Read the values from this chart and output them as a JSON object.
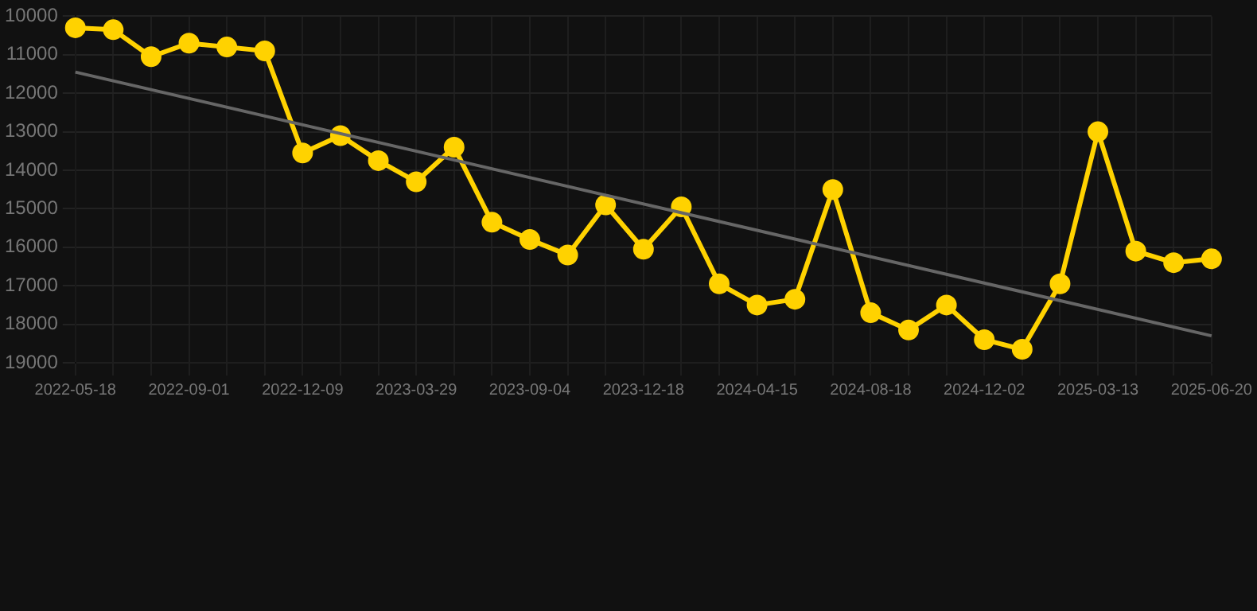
{
  "chart_data": {
    "type": "line",
    "categories": [
      "2022-05-18",
      null,
      null,
      "2022-09-01",
      null,
      null,
      "2022-12-09",
      null,
      null,
      "2023-03-29",
      null,
      null,
      "2023-09-04",
      null,
      null,
      "2023-12-18",
      null,
      null,
      "2024-04-15",
      null,
      null,
      "2024-08-18",
      null,
      null,
      "2024-12-02",
      null,
      null,
      "2025-03-13",
      null,
      null,
      "2025-06-20"
    ],
    "series": [
      {
        "color": "#ffd200",
        "marker": "circle",
        "values": [
          10300,
          10350,
          11050,
          10700,
          10800,
          10900,
          13550,
          13100,
          13750,
          14300,
          13400,
          15350,
          15800,
          16200,
          14900,
          16050,
          14950,
          16950,
          17500,
          17350,
          14500,
          17700,
          18150,
          17500,
          18400,
          18650,
          16950,
          13000,
          16100,
          16400,
          16300
        ]
      },
      {
        "type": "line",
        "color": "#666666",
        "marker": "none",
        "values": [
          11450,
          null,
          null,
          null,
          null,
          null,
          null,
          null,
          null,
          null,
          null,
          null,
          null,
          null,
          null,
          null,
          null,
          null,
          null,
          null,
          null,
          null,
          null,
          null,
          null,
          null,
          null,
          null,
          null,
          null,
          18300
        ]
      }
    ],
    "ylim": [
      19000,
      10000
    ],
    "yticks": [
      10000,
      11000,
      12000,
      13000,
      14000,
      15000,
      16000,
      17000,
      18000,
      19000
    ],
    "grid": true,
    "legend": false
  }
}
